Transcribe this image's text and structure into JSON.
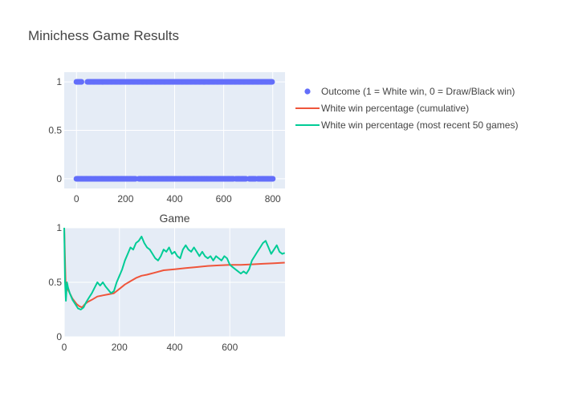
{
  "title": "Minichess Game Results",
  "colors": {
    "outcome": "#636efa",
    "cumulative": "#ef553b",
    "rolling": "#00cc96",
    "plot_bg": "#e5ecf6",
    "text": "#444444",
    "title": "#444444"
  },
  "legend": {
    "placement": "top-right",
    "items": [
      {
        "label": "Outcome (1 = White win, 0 = Draw/Black win)",
        "marker": "dot",
        "color_key": "outcome"
      },
      {
        "label": "White win percentage (cumulative)",
        "marker": "line",
        "color_key": "cumulative"
      },
      {
        "label": "White win percentage (most recent 50 games)",
        "marker": "line",
        "color_key": "rolling"
      }
    ]
  },
  "chart_data": [
    {
      "type": "scatter",
      "title": "",
      "xlabel": "Game",
      "ylabel": "",
      "xlim": [
        -50,
        850
      ],
      "ylim": [
        -0.1,
        1.1
      ],
      "x_ticks": [
        0,
        200,
        400,
        600,
        800
      ],
      "y_ticks": [
        0,
        0.5,
        1
      ],
      "y_tick_labels": [
        "0",
        "0.5",
        "1"
      ],
      "grid": true,
      "series": [
        {
          "name": "Outcome (1 = White win, 0 = Draw/Black win)",
          "x_range": [
            0,
            799
          ],
          "y_values": [
            0,
            1
          ],
          "win_segments": [
            [
              0,
              20
            ],
            [
              45,
              800
            ]
          ],
          "draw_loss_segments": [
            [
              0,
              240
            ],
            [
              255,
              640
            ],
            [
              650,
              690
            ],
            [
              705,
              730
            ],
            [
              740,
              800
            ]
          ]
        }
      ]
    },
    {
      "type": "line",
      "title": "",
      "xlabel": "",
      "ylabel": "",
      "xlim": [
        0,
        800
      ],
      "ylim": [
        0,
        1
      ],
      "x_ticks": [
        0,
        200,
        400,
        600
      ],
      "y_ticks": [
        0,
        0.5,
        1
      ],
      "y_tick_labels": [
        "0",
        "0.5",
        "1"
      ],
      "grid": true,
      "series": [
        {
          "name": "White win percentage (cumulative)",
          "points": [
            [
              0,
              1
            ],
            [
              5,
              0.5
            ],
            [
              10,
              0.45
            ],
            [
              20,
              0.4
            ],
            [
              30,
              0.35
            ],
            [
              45,
              0.3
            ],
            [
              55,
              0.28
            ],
            [
              65,
              0.27
            ],
            [
              75,
              0.3
            ],
            [
              85,
              0.32
            ],
            [
              100,
              0.34
            ],
            [
              120,
              0.37
            ],
            [
              140,
              0.38
            ],
            [
              160,
              0.39
            ],
            [
              180,
              0.4
            ],
            [
              200,
              0.44
            ],
            [
              220,
              0.48
            ],
            [
              240,
              0.51
            ],
            [
              260,
              0.54
            ],
            [
              280,
              0.56
            ],
            [
              300,
              0.57
            ],
            [
              330,
              0.59
            ],
            [
              360,
              0.61
            ],
            [
              400,
              0.62
            ],
            [
              440,
              0.63
            ],
            [
              480,
              0.64
            ],
            [
              520,
              0.65
            ],
            [
              560,
              0.655
            ],
            [
              600,
              0.66
            ],
            [
              640,
              0.66
            ],
            [
              680,
              0.665
            ],
            [
              720,
              0.67
            ],
            [
              760,
              0.675
            ],
            [
              799,
              0.68
            ]
          ]
        },
        {
          "name": "White win percentage (most recent 50 games)",
          "points": [
            [
              0,
              1
            ],
            [
              3,
              0.5
            ],
            [
              6,
              0.33
            ],
            [
              10,
              0.5
            ],
            [
              14,
              0.45
            ],
            [
              20,
              0.4
            ],
            [
              30,
              0.34
            ],
            [
              40,
              0.3
            ],
            [
              50,
              0.26
            ],
            [
              60,
              0.25
            ],
            [
              70,
              0.27
            ],
            [
              80,
              0.32
            ],
            [
              90,
              0.36
            ],
            [
              100,
              0.4
            ],
            [
              110,
              0.45
            ],
            [
              120,
              0.5
            ],
            [
              130,
              0.47
            ],
            [
              140,
              0.5
            ],
            [
              150,
              0.46
            ],
            [
              160,
              0.43
            ],
            [
              170,
              0.4
            ],
            [
              180,
              0.42
            ],
            [
              190,
              0.5
            ],
            [
              200,
              0.56
            ],
            [
              210,
              0.62
            ],
            [
              220,
              0.7
            ],
            [
              230,
              0.76
            ],
            [
              240,
              0.82
            ],
            [
              250,
              0.8
            ],
            [
              260,
              0.86
            ],
            [
              270,
              0.88
            ],
            [
              280,
              0.92
            ],
            [
              290,
              0.86
            ],
            [
              300,
              0.82
            ],
            [
              310,
              0.8
            ],
            [
              320,
              0.76
            ],
            [
              330,
              0.72
            ],
            [
              340,
              0.7
            ],
            [
              350,
              0.74
            ],
            [
              360,
              0.8
            ],
            [
              370,
              0.78
            ],
            [
              380,
              0.82
            ],
            [
              390,
              0.76
            ],
            [
              400,
              0.78
            ],
            [
              410,
              0.74
            ],
            [
              420,
              0.72
            ],
            [
              430,
              0.8
            ],
            [
              440,
              0.84
            ],
            [
              450,
              0.8
            ],
            [
              460,
              0.78
            ],
            [
              470,
              0.82
            ],
            [
              480,
              0.78
            ],
            [
              490,
              0.74
            ],
            [
              500,
              0.78
            ],
            [
              510,
              0.74
            ],
            [
              520,
              0.72
            ],
            [
              530,
              0.74
            ],
            [
              540,
              0.7
            ],
            [
              550,
              0.74
            ],
            [
              560,
              0.72
            ],
            [
              570,
              0.7
            ],
            [
              580,
              0.74
            ],
            [
              590,
              0.72
            ],
            [
              600,
              0.66
            ],
            [
              610,
              0.64
            ],
            [
              620,
              0.62
            ],
            [
              630,
              0.6
            ],
            [
              640,
              0.58
            ],
            [
              650,
              0.6
            ],
            [
              660,
              0.58
            ],
            [
              670,
              0.62
            ],
            [
              680,
              0.7
            ],
            [
              690,
              0.74
            ],
            [
              700,
              0.78
            ],
            [
              710,
              0.82
            ],
            [
              720,
              0.86
            ],
            [
              730,
              0.88
            ],
            [
              740,
              0.82
            ],
            [
              750,
              0.76
            ],
            [
              760,
              0.8
            ],
            [
              770,
              0.84
            ],
            [
              780,
              0.78
            ],
            [
              790,
              0.76
            ],
            [
              799,
              0.77
            ]
          ]
        }
      ]
    }
  ]
}
